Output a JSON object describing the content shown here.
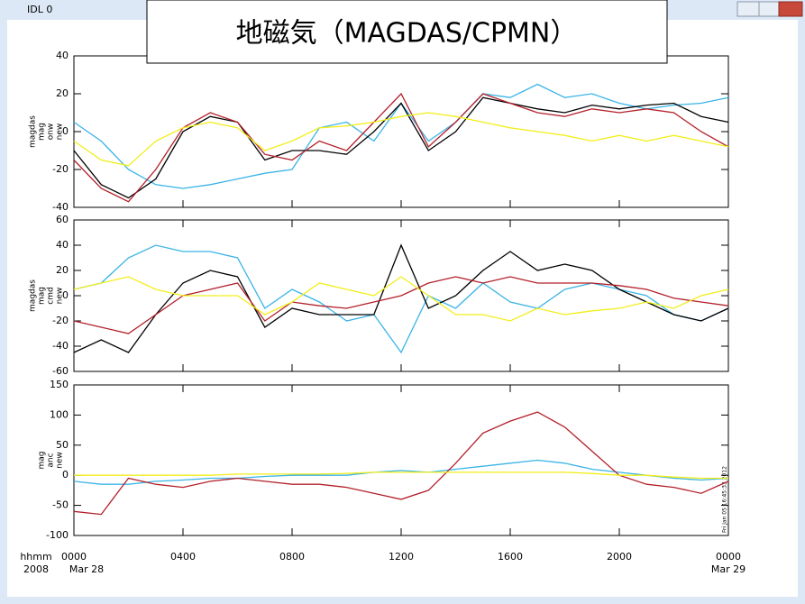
{
  "window_title": "IDL 0",
  "overlay_title": "地磁気（MAGDAS/CPMN）",
  "x_axis_prefix": [
    "hhmm",
    "2008"
  ],
  "date_labels": {
    "start": "Mar 28",
    "end": "Mar 29"
  },
  "chart_data": [
    {
      "type": "line",
      "ylabel_lines": [
        "magdas",
        "mag",
        "onw",
        "new"
      ],
      "x": [
        0,
        1,
        2,
        3,
        4,
        5,
        6,
        7,
        8,
        9,
        10,
        11,
        12,
        13,
        14,
        15,
        16,
        17,
        18,
        19,
        20,
        21,
        22,
        23,
        24
      ],
      "xlim": [
        0,
        24
      ],
      "ylim": [
        -40,
        40
      ],
      "yticks": [
        -40,
        -20,
        0,
        20,
        40
      ],
      "series": [
        {
          "color": "#3ab4e6",
          "values": [
            5,
            -5,
            -20,
            -28,
            -30,
            -28,
            -25,
            -22,
            -20,
            2,
            5,
            -5,
            15,
            -5,
            5,
            20,
            18,
            25,
            18,
            20,
            15,
            12,
            14,
            15,
            18
          ]
        },
        {
          "color": "#000000",
          "values": [
            -10,
            -28,
            -35,
            -25,
            0,
            8,
            5,
            -15,
            -10,
            -10,
            -12,
            0,
            15,
            -10,
            0,
            18,
            15,
            12,
            10,
            14,
            12,
            14,
            15,
            8,
            5
          ]
        },
        {
          "color": "#b3202a",
          "values": [
            -15,
            -30,
            -37,
            -20,
            2,
            10,
            5,
            -12,
            -15,
            -5,
            -10,
            5,
            20,
            -8,
            5,
            20,
            15,
            10,
            8,
            12,
            10,
            12,
            10,
            0,
            -8
          ]
        },
        {
          "color": "#f2ee1a",
          "values": [
            -5,
            -15,
            -18,
            -5,
            2,
            5,
            2,
            -10,
            -5,
            2,
            3,
            5,
            8,
            10,
            8,
            5,
            2,
            0,
            -2,
            -5,
            -2,
            -5,
            -2,
            -5,
            -8
          ]
        }
      ]
    },
    {
      "type": "line",
      "ylabel_lines": [
        "magdas",
        "mag",
        "cmd",
        "new"
      ],
      "x": [
        0,
        1,
        2,
        3,
        4,
        5,
        6,
        7,
        8,
        9,
        10,
        11,
        12,
        13,
        14,
        15,
        16,
        17,
        18,
        19,
        20,
        21,
        22,
        23,
        24
      ],
      "xlim": [
        0,
        24
      ],
      "ylim": [
        -60,
        60
      ],
      "yticks": [
        -60,
        -40,
        -20,
        0,
        20,
        40,
        60
      ],
      "series": [
        {
          "color": "#3ab4e6",
          "values": [
            5,
            10,
            30,
            40,
            35,
            35,
            30,
            -10,
            5,
            -5,
            -20,
            -15,
            -45,
            0,
            -10,
            10,
            -5,
            -10,
            5,
            10,
            5,
            0,
            -15,
            -20,
            -10
          ]
        },
        {
          "color": "#000000",
          "values": [
            -45,
            -35,
            -45,
            -15,
            10,
            20,
            15,
            -25,
            -10,
            -15,
            -15,
            -15,
            40,
            -10,
            0,
            20,
            35,
            20,
            25,
            20,
            5,
            -5,
            -15,
            -20,
            -10
          ]
        },
        {
          "color": "#b3202a",
          "values": [
            -20,
            -25,
            -30,
            -15,
            0,
            5,
            10,
            -20,
            -5,
            -8,
            -10,
            -5,
            0,
            10,
            15,
            10,
            15,
            10,
            10,
            10,
            8,
            5,
            -2,
            -5,
            -8
          ]
        },
        {
          "color": "#f2ee1a",
          "values": [
            5,
            10,
            15,
            5,
            0,
            0,
            0,
            -15,
            -5,
            10,
            5,
            0,
            15,
            0,
            -15,
            -15,
            -20,
            -10,
            -15,
            -12,
            -10,
            -5,
            -10,
            0,
            5
          ]
        }
      ]
    },
    {
      "type": "line",
      "ylabel_lines": [
        "mag",
        "anc",
        "new"
      ],
      "annotation": "Fri Jan 05 16:45:33 2012",
      "x": [
        0,
        1,
        2,
        3,
        4,
        5,
        6,
        7,
        8,
        9,
        10,
        11,
        12,
        13,
        14,
        15,
        16,
        17,
        18,
        19,
        20,
        21,
        22,
        23,
        24
      ],
      "xlim": [
        0,
        24
      ],
      "ylim": [
        -100,
        150
      ],
      "yticks": [
        -100,
        -50,
        0,
        50,
        100,
        150
      ],
      "xticks": [
        {
          "value": 0,
          "label": "0000"
        },
        {
          "value": 4,
          "label": "0400"
        },
        {
          "value": 8,
          "label": "0800"
        },
        {
          "value": 12,
          "label": "1200"
        },
        {
          "value": 16,
          "label": "1600"
        },
        {
          "value": 20,
          "label": "2000"
        },
        {
          "value": 24,
          "label": "0000"
        }
      ],
      "series": [
        {
          "color": "#3ab4e6",
          "values": [
            -10,
            -15,
            -15,
            -10,
            -8,
            -5,
            -5,
            -2,
            0,
            0,
            0,
            5,
            8,
            5,
            10,
            15,
            20,
            25,
            20,
            10,
            5,
            0,
            -5,
            -8,
            -5
          ]
        },
        {
          "color": "#b3202a",
          "values": [
            -60,
            -65,
            -5,
            -15,
            -20,
            -10,
            -5,
            -10,
            -15,
            -15,
            -20,
            -30,
            -40,
            -25,
            20,
            70,
            90,
            105,
            80,
            40,
            0,
            -15,
            -20,
            -30,
            -10
          ]
        },
        {
          "color": "#f2ee1a",
          "values": [
            0,
            0,
            0,
            0,
            0,
            0,
            2,
            2,
            2,
            2,
            3,
            5,
            5,
            5,
            5,
            5,
            5,
            5,
            5,
            3,
            0,
            0,
            -3,
            -5,
            -5
          ]
        }
      ]
    }
  ]
}
